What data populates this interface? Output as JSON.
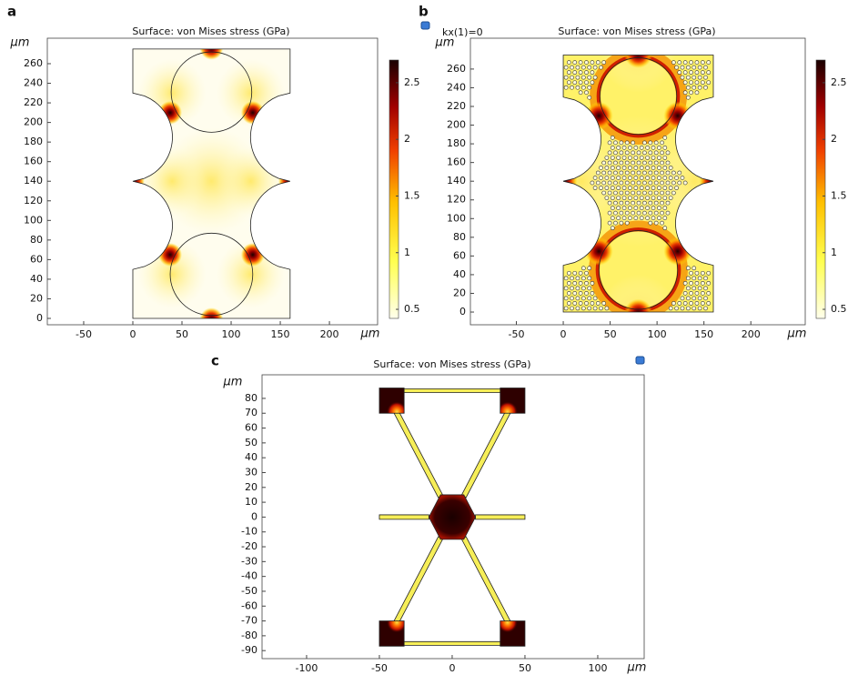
{
  "chart_data": [
    {
      "type": "surface",
      "label": "a",
      "title": "Surface: von Mises stress (GPa)",
      "xlabel": "μm",
      "ylabel": "μm",
      "xlim": [
        -87,
        249
      ],
      "ylim": [
        -6.5,
        286
      ],
      "xticks": [
        -50,
        0,
        50,
        100,
        150,
        200
      ],
      "yticks": [
        0,
        20,
        40,
        60,
        80,
        100,
        120,
        140,
        160,
        180,
        200,
        220,
        240,
        260
      ],
      "clim": [
        0.42,
        2.7
      ],
      "cticks": [
        0.5,
        1,
        1.5,
        2,
        2.5
      ]
    },
    {
      "type": "surface",
      "label": "b",
      "annotation": "kx(1)=0",
      "title": "Surface: von Mises stress (GPa)",
      "xlabel": "μm",
      "ylabel": "μm",
      "xlim": [
        -99,
        258
      ],
      "ylim": [
        -13.6,
        293
      ],
      "xticks": [
        -50,
        0,
        50,
        100,
        150,
        200
      ],
      "yticks": [
        0,
        20,
        40,
        60,
        80,
        100,
        120,
        140,
        160,
        180,
        200,
        220,
        240,
        260
      ],
      "clim": [
        0.42,
        2.7
      ],
      "cticks": [
        0.5,
        1,
        1.5,
        2,
        2.5
      ]
    },
    {
      "type": "surface",
      "label": "c",
      "title": "Surface: von Mises stress (GPa)",
      "xlabel": "μm",
      "ylabel": "μm",
      "xlim": [
        -130.6,
        131.9
      ],
      "ylim": [
        -95.4,
        95.9
      ],
      "xticks": [
        -100,
        -50,
        0,
        50,
        100
      ],
      "yticks": [
        -90,
        -80,
        -70,
        -60,
        -50,
        -40,
        -30,
        -20,
        -10,
        0,
        10,
        20,
        30,
        40,
        50,
        60,
        70,
        80
      ]
    }
  ]
}
